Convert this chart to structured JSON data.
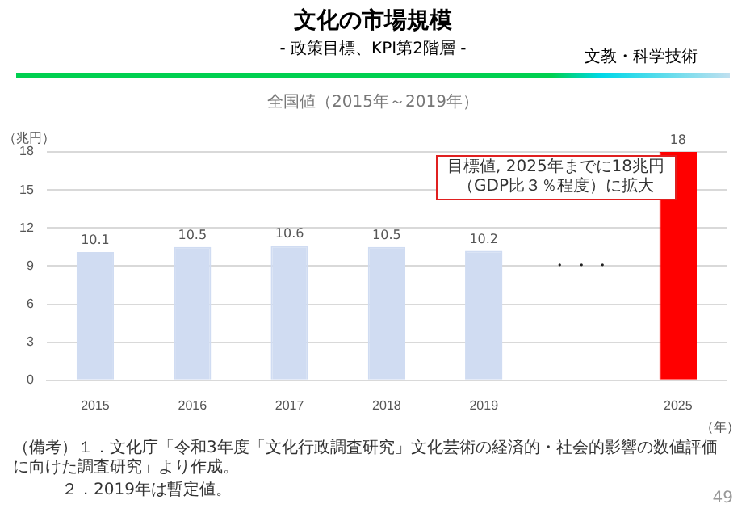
{
  "chart_data": {
    "type": "bar",
    "title": "文化の市場規模",
    "subtitle": "- 政策目標、KPI第2階層 -",
    "xlabel": "（年）",
    "ylabel": "（兆円）",
    "categories": [
      "2015",
      "2016",
      "2017",
      "2018",
      "2019",
      null,
      "2025"
    ],
    "series": [
      {
        "colors": [
          "#d0dcf2",
          "#d0dcf2",
          "#d0dcf2",
          "#d0dcf2",
          "#d0dcf2",
          null,
          "#ff0000"
        ],
        "values": [
          10.1,
          10.5,
          10.6,
          10.5,
          10.2,
          null,
          18
        ]
      }
    ],
    "ylim": [
      0,
      18
    ],
    "yticks": [
      0,
      3,
      6,
      9,
      12,
      15,
      18
    ],
    "grid": "y",
    "data_labels": true,
    "annotations": [
      "文教・科学技術",
      "全国値（2015年～2019年）",
      "目標値, 2025年までに18兆円",
      "（GDP比３％程度）に拡大",
      "・ ・ ・",
      "（備考）１．文化庁「令和3年度「文化行政調査研究」文化芸術の経済的・社会的影響の数値評価に向けた調査研究」より作成。",
      "２．2019年は暫定値。",
      "49"
    ]
  }
}
